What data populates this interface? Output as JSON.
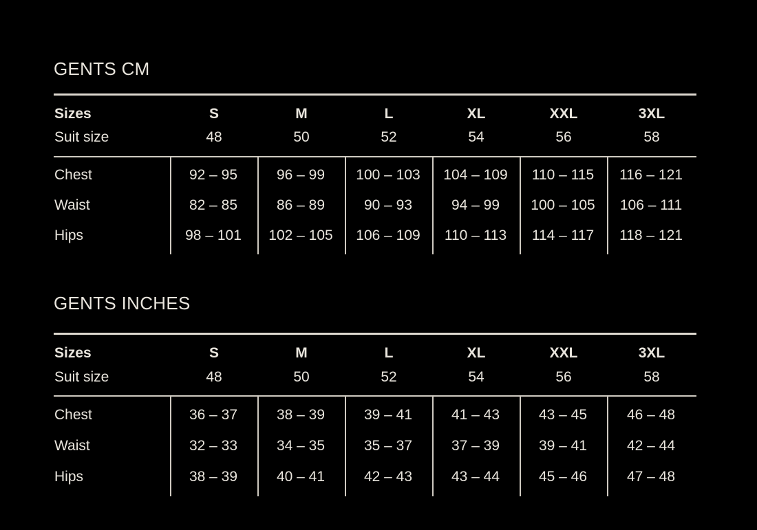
{
  "colors": {
    "background": "#000000",
    "text": "#e9e5dd"
  },
  "tables": [
    {
      "title": "GENTS CM",
      "header_label": "Sizes",
      "sizes": [
        "S",
        "M",
        "L",
        "XL",
        "XXL",
        "3XL"
      ],
      "suit_label": "Suit size",
      "suit_sizes": [
        "48",
        "50",
        "52",
        "54",
        "56",
        "58"
      ],
      "rows": [
        {
          "label": "Chest",
          "values": [
            "92 – 95",
            "96 – 99",
            "100 – 103",
            "104 – 109",
            "110 – 115",
            "116 – 121"
          ]
        },
        {
          "label": "Waist",
          "values": [
            "82 – 85",
            "86 – 89",
            "90 – 93",
            "94 – 99",
            "100 – 105",
            "106 – 111"
          ]
        },
        {
          "label": "Hips",
          "values": [
            "98 – 101",
            "102 – 105",
            "106 – 109",
            "110 – 113",
            "114 – 117",
            "118 – 121"
          ]
        }
      ]
    },
    {
      "title": "GENTS INCHES",
      "header_label": "Sizes",
      "sizes": [
        "S",
        "M",
        "L",
        "XL",
        "XXL",
        "3XL"
      ],
      "suit_label": "Suit size",
      "suit_sizes": [
        "48",
        "50",
        "52",
        "54",
        "56",
        "58"
      ],
      "rows": [
        {
          "label": "Chest",
          "values": [
            "36 – 37",
            "38 – 39",
            "39 – 41",
            "41 – 43",
            "43 – 45",
            "46 – 48"
          ]
        },
        {
          "label": "Waist",
          "values": [
            "32 – 33",
            "34 – 35",
            "35 – 37",
            "37 – 39",
            "39 – 41",
            "42 – 44"
          ]
        },
        {
          "label": "Hips",
          "values": [
            "38 – 39",
            "40 – 41",
            "42 – 43",
            "43 – 44",
            "45 – 46",
            "47 – 48"
          ]
        }
      ]
    }
  ]
}
